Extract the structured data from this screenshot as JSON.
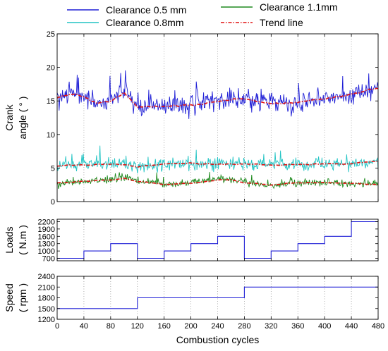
{
  "chart_data": [
    {
      "type": "line",
      "ylabel_lines": [
        "Crank",
        "angle ( ° )"
      ],
      "xlim": [
        0,
        480
      ],
      "ylim": [
        0,
        25
      ],
      "xticks": [
        "0",
        "40",
        "80",
        "120",
        "160",
        "200",
        "240",
        "280",
        "320",
        "360",
        "400",
        "440",
        "480"
      ],
      "yticks": [
        "0",
        "5",
        "10",
        "15",
        "20",
        "25"
      ],
      "vertical_gridlines": true,
      "noise_note_values_are_approximate": true,
      "legend": {
        "placement": "top",
        "entries": [
          {
            "label": "Clearance 0.5 mm",
            "color": "#1f1fd6",
            "style": "solid"
          },
          {
            "label": "Clearance 1.1mm",
            "color": "#1e8a1e",
            "style": "solid"
          },
          {
            "label": "Clearance 0.8mm",
            "color": "#22c4c4",
            "style": "solid"
          },
          {
            "label": "Trend line",
            "color": "#e01010",
            "style": "dashdot"
          }
        ]
      },
      "series": [
        {
          "name": "Clearance 0.5 mm",
          "color": "#1f1fd6",
          "mean_profile_x": [
            0,
            20,
            40,
            60,
            80,
            100,
            120,
            160,
            200,
            240,
            280,
            320,
            360,
            400,
            440,
            480
          ],
          "mean_profile_y": [
            15.5,
            16.0,
            15.5,
            14.5,
            15.0,
            16.2,
            14.2,
            14.2,
            14.3,
            15.0,
            15.3,
            14.5,
            14.8,
            15.3,
            16.0,
            16.8
          ],
          "noise_amplitude": 1.4,
          "range_min": 11.2,
          "range_max": 20.7
        },
        {
          "name": "Clearance 0.8mm",
          "color": "#22c4c4",
          "mean_profile_x": [
            0,
            40,
            80,
            120,
            160,
            200,
            240,
            280,
            320,
            360,
            400,
            440,
            480
          ],
          "mean_profile_y": [
            5.3,
            5.5,
            5.6,
            5.2,
            5.5,
            5.7,
            5.5,
            5.6,
            5.4,
            5.5,
            5.6,
            5.7,
            6.0
          ],
          "noise_amplitude": 0.8,
          "range_min": 4.2,
          "range_max": 8.5
        },
        {
          "name": "Clearance 1.1mm",
          "color": "#1e8a1e",
          "mean_profile_x": [
            0,
            40,
            80,
            100,
            120,
            160,
            200,
            240,
            260,
            280,
            320,
            360,
            400,
            440,
            480
          ],
          "mean_profile_y": [
            2.8,
            3.0,
            3.2,
            3.5,
            3.0,
            2.6,
            2.8,
            3.2,
            3.3,
            2.8,
            2.5,
            2.8,
            2.8,
            2.7,
            2.6
          ],
          "noise_amplitude": 0.5,
          "range_min": 1.9,
          "range_max": 5.3
        }
      ],
      "trend_lines": [
        {
          "name": "Trend line",
          "follows": "Clearance 0.5 mm",
          "color": "#e01010"
        },
        {
          "name": "Trend line",
          "follows": "Clearance 0.8mm",
          "color": "#e01010"
        },
        {
          "name": "Trend line",
          "follows": "Clearance 1.1mm",
          "color": "#e01010"
        }
      ]
    },
    {
      "type": "line",
      "ylabel_lines": [
        "Loads",
        "( N.m )"
      ],
      "xlim": [
        0,
        480
      ],
      "ylim": [
        600,
        2300
      ],
      "xticks": [
        "0",
        "40",
        "80",
        "120",
        "160",
        "200",
        "240",
        "280",
        "320",
        "360",
        "400",
        "440",
        "480"
      ],
      "yticks": [
        "700",
        "1000",
        "1300",
        "1600",
        "1900",
        "2200"
      ],
      "vertical_gridlines": true,
      "series": [
        {
          "name": "Load",
          "color": "#1f1fd6",
          "step": true,
          "x": [
            0,
            40,
            80,
            120,
            160,
            200,
            240,
            280,
            320,
            360,
            400,
            440,
            480
          ],
          "y": [
            700,
            1000,
            1300,
            700,
            1000,
            1300,
            1600,
            700,
            1000,
            1300,
            1600,
            2200,
            2200
          ]
        }
      ]
    },
    {
      "type": "line",
      "ylabel_lines": [
        "Speed",
        "( rpm )"
      ],
      "xlabel": "Combustion cycles",
      "xlim": [
        0,
        480
      ],
      "ylim": [
        1200,
        2400
      ],
      "xticks": [
        "0",
        "40",
        "80",
        "120",
        "160",
        "200",
        "240",
        "280",
        "320",
        "360",
        "400",
        "440",
        "480"
      ],
      "yticks": [
        "1200",
        "1500",
        "1800",
        "2100",
        "2400"
      ],
      "vertical_gridlines": true,
      "series": [
        {
          "name": "Speed",
          "color": "#1f1fd6",
          "step": true,
          "x": [
            0,
            120,
            280,
            480
          ],
          "y": [
            1500,
            1800,
            2100,
            2100
          ]
        }
      ]
    }
  ]
}
